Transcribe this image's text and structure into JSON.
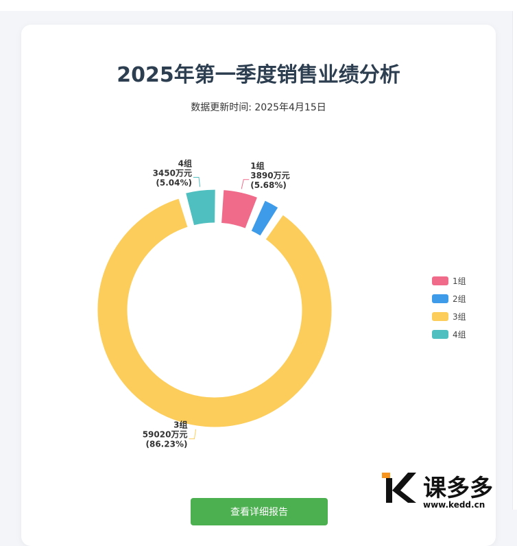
{
  "page": {
    "title": "2025年第一季度销售业绩分析",
    "subtitle": "数据更新时间: 2025年4月15日",
    "button_label": "查看详细报告"
  },
  "chart_data": {
    "type": "pie",
    "variant": "donut-rose",
    "title": "2025年第一季度销售业绩分析",
    "subtitle": "数据更新时间: 2025年4月15日",
    "unit": "万元",
    "legend_position": "right",
    "slices": [
      {
        "name": "1组",
        "value": 3890,
        "percent": "5.68%",
        "value_label": "3890万元",
        "color": "#f06a8a"
      },
      {
        "name": "2组",
        "value": 2090,
        "percent": "",
        "value_label": "",
        "color": "#3d9be9"
      },
      {
        "name": "3组",
        "value": 59020,
        "percent": "86.23%",
        "value_label": "59020万元",
        "color": "#fccd5a"
      },
      {
        "name": "4组",
        "value": 3450,
        "percent": "5.04%",
        "value_label": "3450万元",
        "color": "#4fbfbf"
      }
    ]
  },
  "watermark": {
    "brand": "课多多",
    "url": "www.kedd.cn",
    "logo_colors": [
      "#f7941d",
      "#111111"
    ]
  }
}
